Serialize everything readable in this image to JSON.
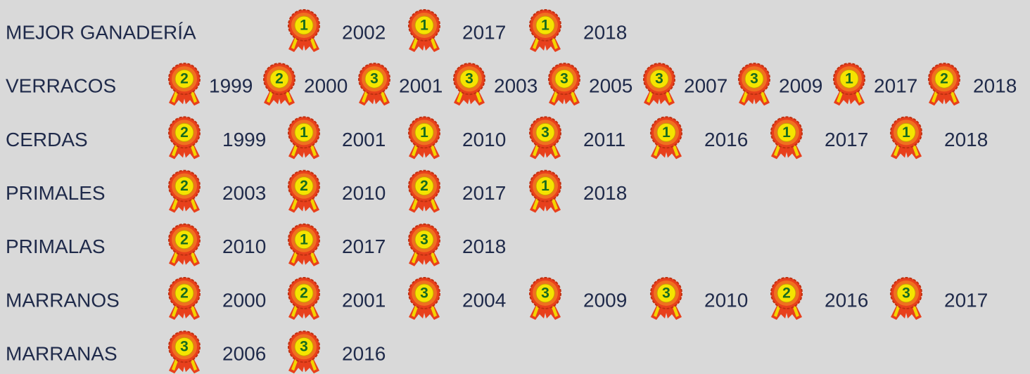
{
  "rows": [
    {
      "label": "MEJOR GANADERÍA",
      "awards": [
        {
          "place": "1",
          "year": "2002"
        },
        {
          "place": "1",
          "year": "2017"
        },
        {
          "place": "1",
          "year": "2018"
        }
      ]
    },
    {
      "label": "VERRACOS",
      "awards": [
        {
          "place": "2",
          "year": "1999"
        },
        {
          "place": "2",
          "year": "2000"
        },
        {
          "place": "3",
          "year": "2001"
        },
        {
          "place": "3",
          "year": "2003"
        },
        {
          "place": "3",
          "year": "2005"
        },
        {
          "place": "3",
          "year": "2007"
        },
        {
          "place": "3",
          "year": "2009"
        },
        {
          "place": "1",
          "year": "2017"
        },
        {
          "place": "2",
          "year": "2018"
        }
      ]
    },
    {
      "label": "CERDAS",
      "awards": [
        {
          "place": "2",
          "year": "1999"
        },
        {
          "place": "1",
          "year": "2001"
        },
        {
          "place": "1",
          "year": "2010"
        },
        {
          "place": "3",
          "year": "2011"
        },
        {
          "place": "1",
          "year": "2016"
        },
        {
          "place": "1",
          "year": "2017"
        },
        {
          "place": "1",
          "year": "2018"
        }
      ]
    },
    {
      "label": "PRIMALES",
      "awards": [
        {
          "place": "2",
          "year": "2003"
        },
        {
          "place": "2",
          "year": "2010"
        },
        {
          "place": "2",
          "year": "2017"
        },
        {
          "place": "1",
          "year": "2018"
        }
      ]
    },
    {
      "label": "PRIMALAS",
      "awards": [
        {
          "place": "2",
          "year": "2010"
        },
        {
          "place": "1",
          "year": "2017"
        },
        {
          "place": "3",
          "year": "2018"
        }
      ]
    },
    {
      "label": "MARRANOS",
      "awards": [
        {
          "place": "2",
          "year": "2000"
        },
        {
          "place": "2",
          "year": "2001"
        },
        {
          "place": "3",
          "year": "2004"
        },
        {
          "place": "3",
          "year": "2009"
        },
        {
          "place": "3",
          "year": "2010"
        },
        {
          "place": "2",
          "year": "2016"
        },
        {
          "place": "3",
          "year": "2017"
        }
      ]
    },
    {
      "label": "MARRANAS",
      "awards": [
        {
          "place": "3",
          "year": "2006"
        },
        {
          "place": "3",
          "year": "2016"
        }
      ]
    }
  ]
}
